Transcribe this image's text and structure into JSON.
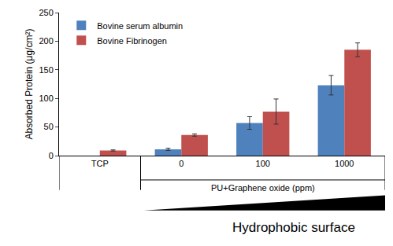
{
  "chart_data": {
    "type": "bar",
    "y_label": "Absorbed Protein (μg/cm²)",
    "categories": [
      "TCP",
      "0",
      "100",
      "1000"
    ],
    "series": [
      {
        "name": "Bovine serum albumin",
        "color": "#4f81bd",
        "values": [
          null,
          11,
          57,
          123
        ],
        "errors": [
          null,
          2,
          11,
          17
        ]
      },
      {
        "name": "Bovine Fibrinogen",
        "color": "#c0504d",
        "values": [
          9,
          36,
          77,
          185
        ],
        "errors": [
          1,
          2,
          22,
          12
        ]
      }
    ],
    "ylim": [
      0,
      250
    ],
    "yticks": [
      0,
      50,
      100,
      150,
      200,
      250
    ],
    "grid": false,
    "legend": "top-left",
    "annotations": [
      {
        "text": "PU+Graphene oxide (ppm)"
      },
      {
        "text": "Hydrophobic surface"
      }
    ]
  }
}
